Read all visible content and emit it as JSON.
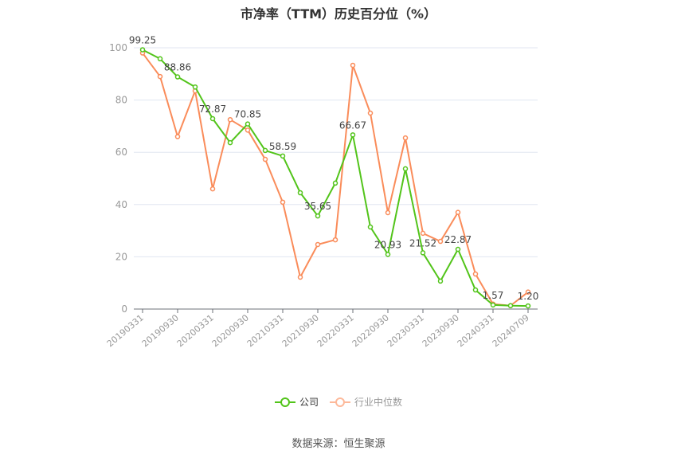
{
  "title": "市净率（TTM）历史百分位（%）",
  "source": "数据来源：恒生聚源",
  "legend": {
    "company": "公司",
    "industry": "行业中位数"
  },
  "colors": {
    "company": "#52c41a",
    "industry": "#fa8c5a",
    "industry_legend": "#fdb99a",
    "grid": "#e0e6f1",
    "axis": "#6e7079"
  },
  "chart_data": {
    "type": "line",
    "title": "市净率（TTM）历史百分位（%）",
    "xlabel": "",
    "ylabel": "",
    "ylim": [
      0,
      100
    ],
    "yticks": [
      0,
      20,
      40,
      60,
      80,
      100
    ],
    "grid": true,
    "legend_position": "bottom",
    "x_tick_labels": [
      "20190331",
      "20190930",
      "20200331",
      "20200930",
      "20210331",
      "20210930",
      "20220331",
      "20220930",
      "20230331",
      "20230930",
      "20240331",
      "20240709"
    ],
    "x": [
      "20190331",
      "20190630",
      "20190930",
      "20191231",
      "20200331",
      "20200630",
      "20200930",
      "20201231",
      "20210331",
      "20210630",
      "20210930",
      "20211231",
      "20220331",
      "20220630",
      "20220930",
      "20221231",
      "20230331",
      "20230630",
      "20230930",
      "20231231",
      "20240331",
      "20240630",
      "20240709"
    ],
    "series": [
      {
        "name": "公司",
        "values": [
          99.25,
          95.8,
          88.86,
          85.0,
          72.87,
          63.7,
          70.85,
          60.7,
          58.59,
          44.5,
          35.65,
          48.2,
          66.67,
          31.4,
          20.93,
          53.7,
          21.52,
          10.7,
          22.87,
          7.3,
          1.57,
          1.3,
          1.2
        ],
        "labels_shown": {
          "0": "99.25",
          "2": "88.86",
          "4": "72.87",
          "6": "70.85",
          "8": "58.59",
          "10": "35.65",
          "12": "66.67",
          "14": "20.93",
          "16": "21.52",
          "18": "22.87",
          "20": "1.57",
          "22": "1.20"
        }
      },
      {
        "name": "行业中位数",
        "values": [
          98.0,
          89.0,
          66.0,
          83.5,
          46.0,
          72.5,
          68.5,
          57.3,
          40.9,
          12.2,
          24.7,
          26.5,
          93.3,
          75.0,
          36.9,
          65.5,
          29.0,
          25.9,
          37.0,
          13.4,
          1.9,
          1.3,
          6.5
        ]
      }
    ]
  }
}
